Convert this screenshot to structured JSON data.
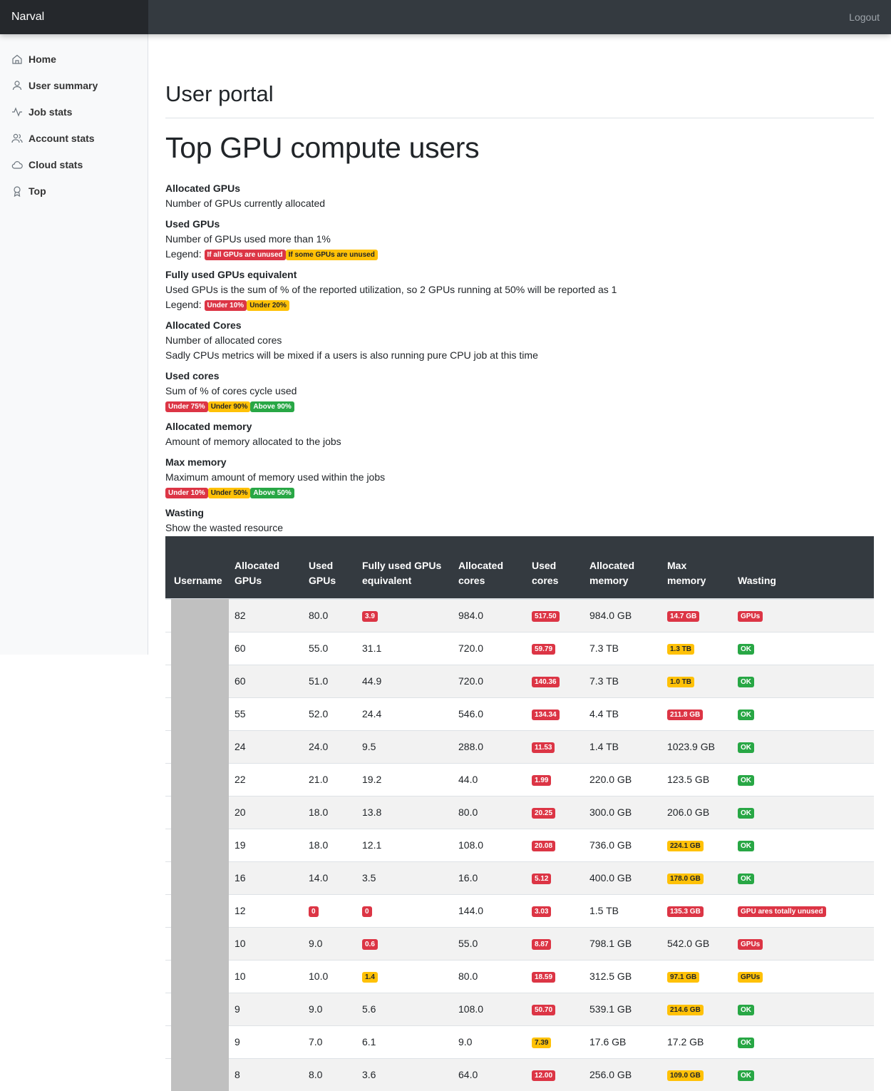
{
  "topbar": {
    "brand": "Narval",
    "logout": "Logout"
  },
  "sidebar": {
    "items": [
      {
        "label": "Home",
        "icon": "home-icon"
      },
      {
        "label": "User summary",
        "icon": "user-icon"
      },
      {
        "label": "Job stats",
        "icon": "activity-icon"
      },
      {
        "label": "Account stats",
        "icon": "users-icon"
      },
      {
        "label": "Cloud stats",
        "icon": "cloud-icon"
      },
      {
        "label": "Top",
        "icon": "award-icon"
      }
    ]
  },
  "page": {
    "title": "User portal",
    "heading": "Top GPU compute users"
  },
  "legend": {
    "alloc_gpus": {
      "title": "Allocated GPUs",
      "desc": "Number of GPUs currently allocated"
    },
    "used_gpus": {
      "title": "Used GPUs",
      "desc": "Number of GPUs used more than 1%",
      "legend_label": "Legend:",
      "b1": "If all GPUs are unused",
      "b2": "If some GPUs are unused"
    },
    "fully_used": {
      "title": "Fully used GPUs equivalent",
      "desc": "Used GPUs is the sum of % of the reported utilization, so 2 GPUs running at 50% will be reported as 1",
      "legend_label": "Legend:",
      "b1": "Under 10%",
      "b2": "Under 20%"
    },
    "alloc_cores": {
      "title": "Allocated Cores",
      "desc": "Number of allocated cores",
      "desc2": "Sadly CPUs metrics will be mixed if a users is also running pure CPU job at this time"
    },
    "used_cores": {
      "title": "Used cores",
      "desc": "Sum of % of cores cycle used",
      "b1": "Under 75%",
      "b2": "Under 90%",
      "b3": "Above 90%"
    },
    "alloc_mem": {
      "title": "Allocated memory",
      "desc": "Amount of memory allocated to the jobs"
    },
    "max_mem": {
      "title": "Max memory",
      "desc": "Maximum amount of memory used within the jobs",
      "b1": "Under 10%",
      "b2": "Under 50%",
      "b3": "Above 50%"
    },
    "wasting": {
      "title": "Wasting",
      "desc": "Show the wasted resource"
    }
  },
  "table": {
    "headers": [
      "Username",
      "Allocated GPUs",
      "Used GPUs",
      "Fully used GPUs equivalent",
      "Allocated cores",
      "Used cores",
      "Allocated memory",
      "Max memory",
      "Wasting"
    ],
    "rows": [
      {
        "alloc_gpus": "82",
        "used_gpus": {
          "v": "80.0",
          "c": ""
        },
        "fully": {
          "v": "3.9",
          "c": "red"
        },
        "alloc_cores": "984.0",
        "used_cores": {
          "v": "517.50",
          "c": "red"
        },
        "alloc_mem": "984.0 GB",
        "max_mem": {
          "v": "14.7 GB",
          "c": "red"
        },
        "wasting": {
          "v": "GPUs",
          "c": "red"
        }
      },
      {
        "alloc_gpus": "60",
        "used_gpus": {
          "v": "55.0",
          "c": ""
        },
        "fully": {
          "v": "31.1",
          "c": ""
        },
        "alloc_cores": "720.0",
        "used_cores": {
          "v": "59.79",
          "c": "red"
        },
        "alloc_mem": "7.3 TB",
        "max_mem": {
          "v": "1.3 TB",
          "c": "yellow"
        },
        "wasting": {
          "v": "OK",
          "c": "green"
        }
      },
      {
        "alloc_gpus": "60",
        "used_gpus": {
          "v": "51.0",
          "c": ""
        },
        "fully": {
          "v": "44.9",
          "c": ""
        },
        "alloc_cores": "720.0",
        "used_cores": {
          "v": "140.36",
          "c": "red"
        },
        "alloc_mem": "7.3 TB",
        "max_mem": {
          "v": "1.0 TB",
          "c": "yellow"
        },
        "wasting": {
          "v": "OK",
          "c": "green"
        }
      },
      {
        "alloc_gpus": "55",
        "used_gpus": {
          "v": "52.0",
          "c": ""
        },
        "fully": {
          "v": "24.4",
          "c": ""
        },
        "alloc_cores": "546.0",
        "used_cores": {
          "v": "134.34",
          "c": "red"
        },
        "alloc_mem": "4.4 TB",
        "max_mem": {
          "v": "211.8 GB",
          "c": "red"
        },
        "wasting": {
          "v": "OK",
          "c": "green"
        }
      },
      {
        "alloc_gpus": "24",
        "used_gpus": {
          "v": "24.0",
          "c": ""
        },
        "fully": {
          "v": "9.5",
          "c": ""
        },
        "alloc_cores": "288.0",
        "used_cores": {
          "v": "11.53",
          "c": "red"
        },
        "alloc_mem": "1.4 TB",
        "max_mem": {
          "v": "1023.9 GB",
          "c": ""
        },
        "wasting": {
          "v": "OK",
          "c": "green"
        }
      },
      {
        "alloc_gpus": "22",
        "used_gpus": {
          "v": "21.0",
          "c": ""
        },
        "fully": {
          "v": "19.2",
          "c": ""
        },
        "alloc_cores": "44.0",
        "used_cores": {
          "v": "1.99",
          "c": "red"
        },
        "alloc_mem": "220.0 GB",
        "max_mem": {
          "v": "123.5 GB",
          "c": ""
        },
        "wasting": {
          "v": "OK",
          "c": "green"
        }
      },
      {
        "alloc_gpus": "20",
        "used_gpus": {
          "v": "18.0",
          "c": ""
        },
        "fully": {
          "v": "13.8",
          "c": ""
        },
        "alloc_cores": "80.0",
        "used_cores": {
          "v": "20.25",
          "c": "red"
        },
        "alloc_mem": "300.0 GB",
        "max_mem": {
          "v": "206.0 GB",
          "c": ""
        },
        "wasting": {
          "v": "OK",
          "c": "green"
        }
      },
      {
        "alloc_gpus": "19",
        "used_gpus": {
          "v": "18.0",
          "c": ""
        },
        "fully": {
          "v": "12.1",
          "c": ""
        },
        "alloc_cores": "108.0",
        "used_cores": {
          "v": "20.08",
          "c": "red"
        },
        "alloc_mem": "736.0 GB",
        "max_mem": {
          "v": "224.1 GB",
          "c": "yellow"
        },
        "wasting": {
          "v": "OK",
          "c": "green"
        }
      },
      {
        "alloc_gpus": "16",
        "used_gpus": {
          "v": "14.0",
          "c": ""
        },
        "fully": {
          "v": "3.5",
          "c": ""
        },
        "alloc_cores": "16.0",
        "used_cores": {
          "v": "5.12",
          "c": "red"
        },
        "alloc_mem": "400.0 GB",
        "max_mem": {
          "v": "178.0 GB",
          "c": "yellow"
        },
        "wasting": {
          "v": "OK",
          "c": "green"
        }
      },
      {
        "alloc_gpus": "12",
        "used_gpus": {
          "v": "0",
          "c": "red"
        },
        "fully": {
          "v": "0",
          "c": "red"
        },
        "alloc_cores": "144.0",
        "used_cores": {
          "v": "3.03",
          "c": "red"
        },
        "alloc_mem": "1.5 TB",
        "max_mem": {
          "v": "135.3 GB",
          "c": "red"
        },
        "wasting": {
          "v": "GPU ares totally unused",
          "c": "red"
        }
      },
      {
        "alloc_gpus": "10",
        "used_gpus": {
          "v": "9.0",
          "c": ""
        },
        "fully": {
          "v": "0.6",
          "c": "red"
        },
        "alloc_cores": "55.0",
        "used_cores": {
          "v": "8.87",
          "c": "red"
        },
        "alloc_mem": "798.1 GB",
        "max_mem": {
          "v": "542.0 GB",
          "c": ""
        },
        "wasting": {
          "v": "GPUs",
          "c": "red"
        }
      },
      {
        "alloc_gpus": "10",
        "used_gpus": {
          "v": "10.0",
          "c": ""
        },
        "fully": {
          "v": "1.4",
          "c": "yellow"
        },
        "alloc_cores": "80.0",
        "used_cores": {
          "v": "18.59",
          "c": "red"
        },
        "alloc_mem": "312.5 GB",
        "max_mem": {
          "v": "97.1 GB",
          "c": "yellow"
        },
        "wasting": {
          "v": "GPUs",
          "c": "yellow"
        }
      },
      {
        "alloc_gpus": "9",
        "used_gpus": {
          "v": "9.0",
          "c": ""
        },
        "fully": {
          "v": "5.6",
          "c": ""
        },
        "alloc_cores": "108.0",
        "used_cores": {
          "v": "50.70",
          "c": "red"
        },
        "alloc_mem": "539.1 GB",
        "max_mem": {
          "v": "214.6 GB",
          "c": "yellow"
        },
        "wasting": {
          "v": "OK",
          "c": "green"
        }
      },
      {
        "alloc_gpus": "9",
        "used_gpus": {
          "v": "7.0",
          "c": ""
        },
        "fully": {
          "v": "6.1",
          "c": ""
        },
        "alloc_cores": "9.0",
        "used_cores": {
          "v": "7.39",
          "c": "yellow"
        },
        "alloc_mem": "17.6 GB",
        "max_mem": {
          "v": "17.2 GB",
          "c": ""
        },
        "wasting": {
          "v": "OK",
          "c": "green"
        }
      },
      {
        "alloc_gpus": "8",
        "used_gpus": {
          "v": "8.0",
          "c": ""
        },
        "fully": {
          "v": "3.6",
          "c": ""
        },
        "alloc_cores": "64.0",
        "used_cores": {
          "v": "12.00",
          "c": "red"
        },
        "alloc_mem": "256.0 GB",
        "max_mem": {
          "v": "109.0 GB",
          "c": "yellow"
        },
        "wasting": {
          "v": "OK",
          "c": "green"
        }
      }
    ]
  },
  "colors": {
    "navbar": "#343a40",
    "brand_bg": "#25282c",
    "danger": "#dc3545",
    "warning": "#ffc107",
    "success": "#28a745"
  }
}
